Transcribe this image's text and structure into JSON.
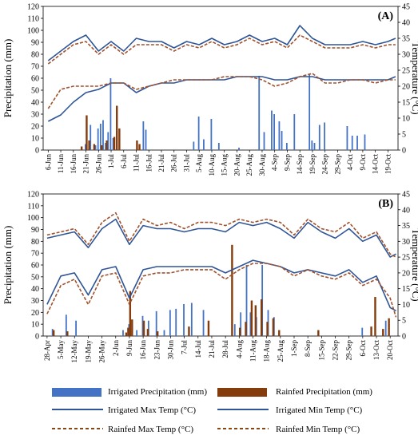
{
  "panels": [
    {
      "label": "(A)",
      "left_axis": {
        "label": "Precipitation (mm)",
        "ticks": [
          0,
          10,
          20,
          30,
          40,
          50,
          60,
          70,
          80,
          90,
          100,
          110,
          120
        ]
      },
      "right_axis": {
        "label": "Temperature (°C)",
        "ticks": [
          0,
          5,
          10,
          15,
          20,
          25,
          30,
          35,
          40,
          45
        ]
      },
      "x_ticks": [
        "6-Jun",
        "11-Jun",
        "16-Jun",
        "21-Jun",
        "26-Jun",
        "1-Jul",
        "6-Jul",
        "11-Jul",
        "16-Jul",
        "21-Jul",
        "26-Jul",
        "31-Jul",
        "5-Aug",
        "10-Aug",
        "15-Aug",
        "20-Aug",
        "25-Aug",
        "30-Aug",
        "4-Sep",
        "9-Sep",
        "14-Sep",
        "19-Sep",
        "24-Sep",
        "29-Sep",
        "4-Oct",
        "9-Oct",
        "14-Oct",
        "19-Oct"
      ]
    },
    {
      "label": "(B)",
      "left_axis": {
        "label": "Precipitation (mm)",
        "ticks": [
          0,
          10,
          20,
          30,
          40,
          50,
          60,
          70,
          80,
          90,
          100,
          110,
          120
        ]
      },
      "right_axis": {
        "label": "Temperature (°C)",
        "ticks": [
          0,
          5,
          10,
          15,
          20,
          25,
          30,
          35,
          40,
          45
        ]
      },
      "x_ticks": [
        "28-Apr",
        "5-May",
        "12-May",
        "19-May",
        "26-May",
        "2-Jun",
        "9-Jun",
        "16-Jun",
        "23-Jun",
        "30-Jun",
        "7-Jul",
        "14-Jul",
        "21-Jul",
        "28-Jul",
        "4-Aug",
        "11-Aug",
        "18-Aug",
        "25-Aug",
        "1-Sep",
        "8-Sep",
        "15-Sep",
        "22-Sep",
        "29-Sep",
        "6-Oct",
        "13-Oct",
        "20-Oct"
      ]
    }
  ],
  "legend": [
    {
      "label": "Irrigated Precipitation (mm)",
      "kind": "bar",
      "color": "#4472C4"
    },
    {
      "label": "Rainfed Precipitation (mm)",
      "kind": "bar",
      "color": "#843C0C"
    },
    {
      "label": "Irrigated Max Temp (°C)",
      "kind": "solid",
      "color": "#2F5597"
    },
    {
      "label": "Irrigated Min Temp (°C)",
      "kind": "solid",
      "color": "#2F5597"
    },
    {
      "label": "Rainfed Max Temp (°C)",
      "kind": "dashed",
      "color": "#8B4513"
    },
    {
      "label": "Rainfed Min Temp (°C)",
      "kind": "dashed",
      "color": "#8B4513"
    }
  ],
  "colors": {
    "irrigated_bar": "#4472C4",
    "rainfed_bar": "#843C0C",
    "irrigated_line": "#2F5597",
    "rainfed_line": "#A0522D"
  },
  "chart_data": [
    {
      "type": "bar",
      "panel": "(A)",
      "title": "",
      "x_ticks": [
        "6-Jun",
        "11-Jun",
        "16-Jun",
        "21-Jun",
        "26-Jun",
        "1-Jul",
        "6-Jul",
        "11-Jul",
        "16-Jul",
        "21-Jul",
        "26-Jul",
        "31-Jul",
        "5-Aug",
        "10-Aug",
        "15-Aug",
        "20-Aug",
        "25-Aug",
        "30-Aug",
        "4-Sep",
        "9-Sep",
        "14-Sep",
        "19-Sep",
        "24-Sep",
        "29-Sep",
        "4-Oct",
        "9-Oct",
        "14-Oct",
        "19-Oct"
      ],
      "ylabel": "Precipitation (mm)",
      "ylim": [
        0,
        120
      ],
      "y2label": "Temperature (°C)",
      "y2lim": [
        0,
        45
      ],
      "irrigated_precip": [
        [
          "21-Jun",
          5
        ],
        [
          "23-Jun",
          21
        ],
        [
          "25-Jun",
          4
        ],
        [
          "26-Jun",
          18
        ],
        [
          "27-Jun",
          22
        ],
        [
          "28-Jun",
          25
        ],
        [
          "29-Jun",
          6
        ],
        [
          "30-Jun",
          15
        ],
        [
          "1-Jul",
          60
        ],
        [
          "2-Jul",
          10
        ],
        [
          "14-Jul",
          24
        ],
        [
          "15-Jul",
          17
        ],
        [
          "3-Aug",
          7
        ],
        [
          "5-Aug",
          28
        ],
        [
          "7-Aug",
          9
        ],
        [
          "10-Aug",
          26
        ],
        [
          "13-Aug",
          6
        ],
        [
          "21-Aug",
          2
        ],
        [
          "29-Aug",
          62
        ],
        [
          "31-Aug",
          15
        ],
        [
          "3-Sep",
          33
        ],
        [
          "4-Sep",
          30
        ],
        [
          "6-Sep",
          24
        ],
        [
          "7-Sep",
          16
        ],
        [
          "9-Sep",
          6
        ],
        [
          "12-Sep",
          30
        ],
        [
          "18-Sep",
          63
        ],
        [
          "19-Sep",
          8
        ],
        [
          "20-Sep",
          6
        ],
        [
          "22-Sep",
          21
        ],
        [
          "24-Sep",
          23
        ],
        [
          "3-Oct",
          20
        ],
        [
          "5-Oct",
          12
        ],
        [
          "7-Oct",
          12
        ],
        [
          "10-Oct",
          13
        ]
      ],
      "rainfed_precip": [
        [
          "19-Jun",
          3
        ],
        [
          "21-Jun",
          29
        ],
        [
          "22-Jun",
          8
        ],
        [
          "24-Jun",
          5
        ],
        [
          "27-Jun",
          4
        ],
        [
          "29-Jun",
          8
        ],
        [
          "2-Jul",
          11
        ],
        [
          "3-Jul",
          37
        ],
        [
          "4-Jul",
          18
        ],
        [
          "11-Jul",
          8
        ],
        [
          "12-Jul",
          5
        ]
      ],
      "series": [
        {
          "name": "Irrigated Max Temp (°C)",
          "x": [
            "6-Jun",
            "11-Jun",
            "16-Jun",
            "21-Jun",
            "26-Jun",
            "1-Jul",
            "6-Jul",
            "11-Jul",
            "16-Jul",
            "21-Jul",
            "26-Jul",
            "31-Jul",
            "5-Aug",
            "10-Aug",
            "15-Aug",
            "20-Aug",
            "25-Aug",
            "30-Aug",
            "4-Sep",
            "9-Sep",
            "14-Sep",
            "19-Sep",
            "24-Sep",
            "29-Sep",
            "4-Oct",
            "9-Oct",
            "14-Oct",
            "19-Oct",
            "22-Oct"
          ],
          "values": [
            28,
            31,
            34,
            36,
            31,
            34,
            31,
            35,
            34,
            34,
            32,
            34,
            33,
            35,
            33,
            34,
            36,
            34,
            35,
            33,
            39,
            35,
            33,
            33,
            33,
            34,
            33,
            34,
            35
          ]
        },
        {
          "name": "Rainfed Max Temp (°C)",
          "x": [
            "6-Jun",
            "11-Jun",
            "16-Jun",
            "21-Jun",
            "26-Jun",
            "1-Jul",
            "6-Jul",
            "11-Jul",
            "16-Jul",
            "21-Jul",
            "26-Jul",
            "31-Jul",
            "5-Aug",
            "10-Aug",
            "15-Aug",
            "20-Aug",
            "25-Aug",
            "30-Aug",
            "4-Sep",
            "9-Sep",
            "14-Sep",
            "19-Sep",
            "24-Sep",
            "29-Sep",
            "4-Oct",
            "9-Oct",
            "14-Oct",
            "19-Oct",
            "22-Oct"
          ],
          "values": [
            27,
            30,
            33,
            34,
            30,
            33,
            30,
            33,
            33,
            33,
            31,
            33,
            32,
            34,
            32,
            33,
            35,
            33,
            34,
            32,
            36,
            34,
            32,
            32,
            32,
            33,
            32,
            33,
            33
          ]
        },
        {
          "name": "Irrigated Min Temp (°C)",
          "x": [
            "6-Jun",
            "11-Jun",
            "16-Jun",
            "21-Jun",
            "26-Jun",
            "1-Jul",
            "6-Jul",
            "11-Jul",
            "16-Jul",
            "21-Jul",
            "26-Jul",
            "31-Jul",
            "5-Aug",
            "10-Aug",
            "15-Aug",
            "20-Aug",
            "25-Aug",
            "30-Aug",
            "4-Sep",
            "9-Sep",
            "14-Sep",
            "19-Sep",
            "24-Sep",
            "29-Sep",
            "4-Oct",
            "9-Oct",
            "14-Oct",
            "19-Oct",
            "22-Oct"
          ],
          "values": [
            9,
            11,
            15,
            18,
            19,
            21,
            21,
            18,
            20,
            21,
            21,
            22,
            22,
            22,
            22,
            23,
            23,
            23,
            22,
            22,
            23,
            23,
            22,
            22,
            22,
            22,
            22,
            22,
            23
          ]
        },
        {
          "name": "Rainfed Min Temp (°C)",
          "x": [
            "6-Jun",
            "11-Jun",
            "16-Jun",
            "21-Jun",
            "26-Jun",
            "1-Jul",
            "6-Jul",
            "11-Jul",
            "16-Jul",
            "21-Jul",
            "26-Jul",
            "31-Jul",
            "5-Aug",
            "10-Aug",
            "15-Aug",
            "20-Aug",
            "25-Aug",
            "30-Aug",
            "4-Sep",
            "9-Sep",
            "14-Sep",
            "19-Sep",
            "24-Sep",
            "29-Sep",
            "4-Oct",
            "9-Oct",
            "14-Oct",
            "19-Oct",
            "22-Oct"
          ],
          "values": [
            13,
            19,
            20,
            20,
            20,
            21,
            21,
            19,
            20,
            21,
            22,
            22,
            22,
            22,
            23,
            23,
            23,
            22,
            20,
            21,
            23,
            24,
            21,
            21,
            22,
            22,
            21,
            22,
            22
          ]
        }
      ]
    },
    {
      "type": "bar",
      "panel": "(B)",
      "title": "",
      "x_ticks": [
        "28-Apr",
        "5-May",
        "12-May",
        "19-May",
        "26-May",
        "2-Jun",
        "9-Jun",
        "16-Jun",
        "23-Jun",
        "30-Jun",
        "7-Jul",
        "14-Jul",
        "21-Jul",
        "28-Jul",
        "4-Aug",
        "11-Aug",
        "18-Aug",
        "25-Aug",
        "1-Sep",
        "8-Sep",
        "15-Sep",
        "22-Sep",
        "29-Sep",
        "6-Oct",
        "13-Oct",
        "20-Oct"
      ],
      "ylabel": "Precipitation (mm)",
      "ylim": [
        0,
        120
      ],
      "y2label": "Temperature (°C)",
      "y2lim": [
        0,
        45
      ],
      "irrigated_precip": [
        [
          "1-May",
          6
        ],
        [
          "8-May",
          18
        ],
        [
          "13-May",
          13
        ],
        [
          "6-Jun",
          5
        ],
        [
          "9-Jun",
          10
        ],
        [
          "13-Jun",
          5
        ],
        [
          "16-Jun",
          17
        ],
        [
          "19-Jun",
          13
        ],
        [
          "23-Jun",
          21
        ],
        [
          "27-Jun",
          5
        ],
        [
          "30-Jun",
          22
        ],
        [
          "3-Jul",
          23
        ],
        [
          "7-Jul",
          27
        ],
        [
          "11-Jul",
          28
        ],
        [
          "17-Jul",
          22
        ],
        [
          "2-Aug",
          10
        ],
        [
          "5-Aug",
          20
        ],
        [
          "8-Aug",
          60
        ],
        [
          "10-Aug",
          20
        ],
        [
          "13-Aug",
          16
        ],
        [
          "16-Aug",
          60
        ],
        [
          "19-Aug",
          22
        ],
        [
          "22-Aug",
          16
        ],
        [
          "6-Oct",
          7
        ],
        [
          "18-Oct",
          13
        ]
      ],
      "rainfed_precip": [
        [
          "1-May",
          5
        ],
        [
          "8-May",
          4
        ],
        [
          "7-Jun",
          3
        ],
        [
          "8-Jun",
          7
        ],
        [
          "9-Jun",
          38
        ],
        [
          "10-Jun",
          14
        ],
        [
          "16-Jun",
          13
        ],
        [
          "18-Jun",
          6
        ],
        [
          "23-Jun",
          4
        ],
        [
          "9-Jul",
          8
        ],
        [
          "19-Jul",
          13
        ],
        [
          "31-Jul",
          77
        ],
        [
          "4-Aug",
          7
        ],
        [
          "7-Aug",
          12
        ],
        [
          "10-Aug",
          30
        ],
        [
          "12-Aug",
          26
        ],
        [
          "15-Aug",
          31
        ],
        [
          "18-Aug",
          12
        ],
        [
          "21-Aug",
          15
        ],
        [
          "24-Aug",
          5
        ],
        [
          "13-Sep",
          5
        ],
        [
          "10-Oct",
          8
        ],
        [
          "12-Oct",
          33
        ],
        [
          "16-Oct",
          6
        ],
        [
          "19-Oct",
          15
        ]
      ],
      "series": [
        {
          "name": "Irrigated Max Temp (°C)",
          "x": [
            "28-Apr",
            "5-May",
            "12-May",
            "19-May",
            "26-May",
            "2-Jun",
            "9-Jun",
            "16-Jun",
            "23-Jun",
            "30-Jun",
            "7-Jul",
            "14-Jul",
            "21-Jul",
            "28-Jul",
            "4-Aug",
            "11-Aug",
            "18-Aug",
            "25-Aug",
            "1-Sep",
            "8-Sep",
            "15-Sep",
            "22-Sep",
            "29-Sep",
            "6-Oct",
            "13-Oct",
            "20-Oct",
            "23-Oct"
          ],
          "values": [
            31,
            32,
            33,
            28,
            34,
            37,
            29,
            35,
            34,
            34,
            33,
            34,
            34,
            33,
            36,
            35,
            36,
            34,
            31,
            36,
            33,
            31,
            34,
            30,
            32,
            25,
            26
          ]
        },
        {
          "name": "Rainfed Max Temp (°C)",
          "x": [
            "28-Apr",
            "5-May",
            "12-May",
            "19-May",
            "26-May",
            "2-Jun",
            "9-Jun",
            "16-Jun",
            "23-Jun",
            "30-Jun",
            "7-Jul",
            "14-Jul",
            "21-Jul",
            "28-Jul",
            "4-Aug",
            "11-Aug",
            "18-Aug",
            "25-Aug",
            "1-Sep",
            "8-Sep",
            "15-Sep",
            "22-Sep",
            "29-Sep",
            "6-Oct",
            "13-Oct",
            "20-Oct",
            "23-Oct"
          ],
          "values": [
            32,
            33,
            34,
            29,
            36,
            39,
            30,
            37,
            35,
            36,
            34,
            36,
            36,
            35,
            37,
            36,
            37,
            36,
            32,
            37,
            34,
            33,
            36,
            31,
            33,
            26,
            25
          ]
        },
        {
          "name": "Irrigated Min Temp (°C)",
          "x": [
            "28-Apr",
            "5-May",
            "12-May",
            "19-May",
            "26-May",
            "2-Jun",
            "9-Jun",
            "16-Jun",
            "23-Jun",
            "30-Jun",
            "7-Jul",
            "14-Jul",
            "21-Jul",
            "28-Jul",
            "4-Aug",
            "11-Aug",
            "18-Aug",
            "25-Aug",
            "1-Sep",
            "8-Sep",
            "15-Sep",
            "22-Sep",
            "29-Sep",
            "6-Oct",
            "13-Oct",
            "20-Oct",
            "23-Oct"
          ],
          "values": [
            10,
            19,
            20,
            13,
            21,
            22,
            12,
            21,
            22,
            22,
            22,
            22,
            22,
            20,
            22,
            24,
            23,
            22,
            20,
            21,
            20,
            19,
            21,
            17,
            19,
            9,
            8
          ]
        },
        {
          "name": "Rainfed Min Temp (°C)",
          "x": [
            "28-Apr",
            "5-May",
            "12-May",
            "19-May",
            "26-May",
            "2-Jun",
            "9-Jun",
            "16-Jun",
            "23-Jun",
            "30-Jun",
            "7-Jul",
            "14-Jul",
            "21-Jul",
            "28-Jul",
            "4-Aug",
            "11-Aug",
            "18-Aug",
            "25-Aug",
            "1-Sep",
            "8-Sep",
            "15-Sep",
            "22-Sep",
            "29-Sep",
            "6-Oct",
            "13-Oct",
            "20-Oct",
            "23-Oct"
          ],
          "values": [
            7,
            16,
            18,
            10,
            19,
            20,
            10,
            19,
            20,
            20,
            21,
            21,
            21,
            18,
            21,
            23,
            23,
            22,
            19,
            21,
            19,
            18,
            20,
            16,
            18,
            12,
            6
          ]
        }
      ]
    }
  ]
}
